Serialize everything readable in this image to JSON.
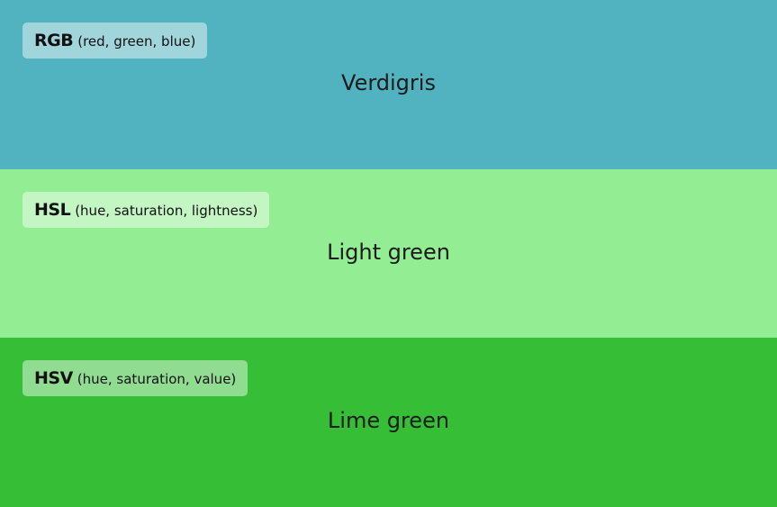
{
  "panels": [
    {
      "model": "RGB",
      "model_desc": "(red, green, blue)",
      "color_name": "Verdigris",
      "background": "#52b3c0"
    },
    {
      "model": "HSL",
      "model_desc": "(hue, saturation, lightness)",
      "color_name": "Light green",
      "background": "#93ee93"
    },
    {
      "model": "HSV",
      "model_desc": "(hue, saturation, value)",
      "color_name": "Lime green",
      "background": "#36bf36"
    }
  ]
}
